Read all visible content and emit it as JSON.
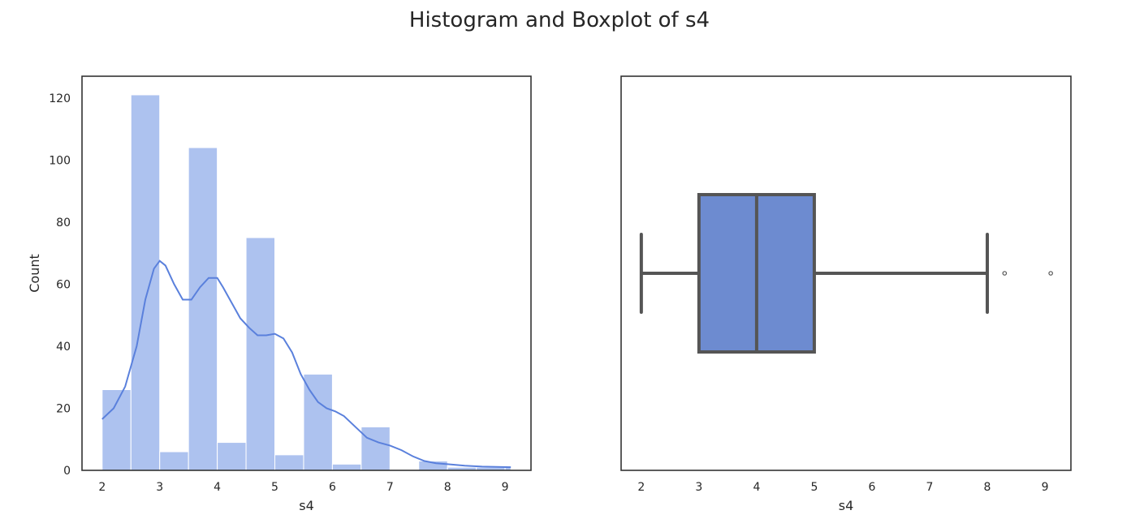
{
  "title": "Histogram and Boxplot of s4",
  "colors": {
    "bar_fill": "#adc2ef",
    "bar_edge": "#ffffff",
    "kde_line": "#5a80dc",
    "box_fill": "#6d8bd0",
    "box_edge": "#555555",
    "frame": "#333333",
    "text": "#262626"
  },
  "chart_data": [
    {
      "type": "bar",
      "subtype": "histogram",
      "xlabel": "s4",
      "ylabel": "Count",
      "xlim": [
        1.65,
        9.45
      ],
      "ylim": [
        0,
        127
      ],
      "xticks": [
        2,
        3,
        4,
        5,
        6,
        7,
        8,
        9
      ],
      "yticks": [
        0,
        20,
        40,
        60,
        80,
        100,
        120
      ],
      "bins": [
        {
          "x0": 2.0,
          "x1": 2.5,
          "count": 26
        },
        {
          "x0": 2.5,
          "x1": 3.0,
          "count": 121
        },
        {
          "x0": 3.0,
          "x1": 3.5,
          "count": 6
        },
        {
          "x0": 3.5,
          "x1": 4.0,
          "count": 104
        },
        {
          "x0": 4.0,
          "x1": 4.5,
          "count": 9
        },
        {
          "x0": 4.5,
          "x1": 5.0,
          "count": 75
        },
        {
          "x0": 5.0,
          "x1": 5.5,
          "count": 5
        },
        {
          "x0": 5.5,
          "x1": 6.0,
          "count": 31
        },
        {
          "x0": 6.0,
          "x1": 6.5,
          "count": 2
        },
        {
          "x0": 6.5,
          "x1": 7.0,
          "count": 14
        },
        {
          "x0": 7.0,
          "x1": 7.5,
          "count": 0
        },
        {
          "x0": 7.5,
          "x1": 8.0,
          "count": 3
        },
        {
          "x0": 8.0,
          "x1": 8.5,
          "count": 1
        },
        {
          "x0": 8.5,
          "x1": 9.0,
          "count": 1
        },
        {
          "x0": 9.0,
          "x1": 9.1,
          "count": 1
        }
      ],
      "kde": {
        "x": [
          2.0,
          2.2,
          2.4,
          2.6,
          2.75,
          2.9,
          3.0,
          3.1,
          3.25,
          3.4,
          3.55,
          3.7,
          3.85,
          4.0,
          4.1,
          4.25,
          4.4,
          4.55,
          4.7,
          4.85,
          5.0,
          5.15,
          5.3,
          5.45,
          5.6,
          5.75,
          5.9,
          6.05,
          6.2,
          6.4,
          6.6,
          6.8,
          7.0,
          7.2,
          7.4,
          7.6,
          7.8,
          8.0,
          8.3,
          8.6,
          9.1
        ],
        "y": [
          16.5,
          20,
          27,
          40,
          55,
          65,
          67.5,
          66,
          60,
          55,
          55,
          59,
          62,
          62,
          59,
          54,
          49,
          46,
          43.5,
          43.5,
          44,
          42.5,
          38,
          31,
          26,
          22,
          20,
          19,
          17.5,
          14,
          10.5,
          9,
          8,
          6.5,
          4.5,
          3,
          2.3,
          2,
          1.5,
          1.2,
          1
        ]
      },
      "grid": false
    },
    {
      "type": "boxplot",
      "xlabel": "s4",
      "ylabel": "",
      "xlim": [
        1.65,
        9.45
      ],
      "xticks": [
        2,
        3,
        4,
        5,
        6,
        7,
        8,
        9
      ],
      "whisker_low": 2,
      "q1": 3,
      "median": 4,
      "q3": 5,
      "whisker_high": 8,
      "outliers": [
        8.3,
        9.1
      ],
      "grid": false
    }
  ]
}
